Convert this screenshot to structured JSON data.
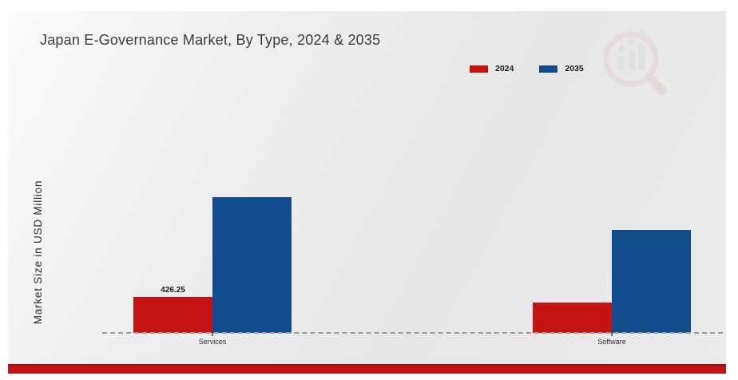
{
  "page": {
    "background": "#ffffff",
    "panel_background": "#ebebeb",
    "accent_red": "#c51212",
    "accent_blue": "#134c8d",
    "bottom_strip_color": "#c31414",
    "watermark_icon": "bar-chart-magnifier-logo"
  },
  "chart_data": {
    "type": "bar",
    "title": "Japan E-Governance Market, By Type, 2024 & 2035",
    "ylabel": "Market Size in USD Million",
    "xlabel": "",
    "categories": [
      "Services",
      "Software"
    ],
    "series": [
      {
        "name": "2024",
        "color": "#c51212",
        "values": [
          426.25,
          360
        ],
        "labels": [
          "426.25",
          null
        ]
      },
      {
        "name": "2035",
        "color": "#134c8d",
        "values": [
          1610,
          1220
        ],
        "labels": [
          null,
          null
        ]
      }
    ],
    "ylim": [
      0,
      1900
    ],
    "grid": false,
    "legend_position": "top-right",
    "baseline_style": "dashed",
    "value_axis_ticks_visible": false
  }
}
